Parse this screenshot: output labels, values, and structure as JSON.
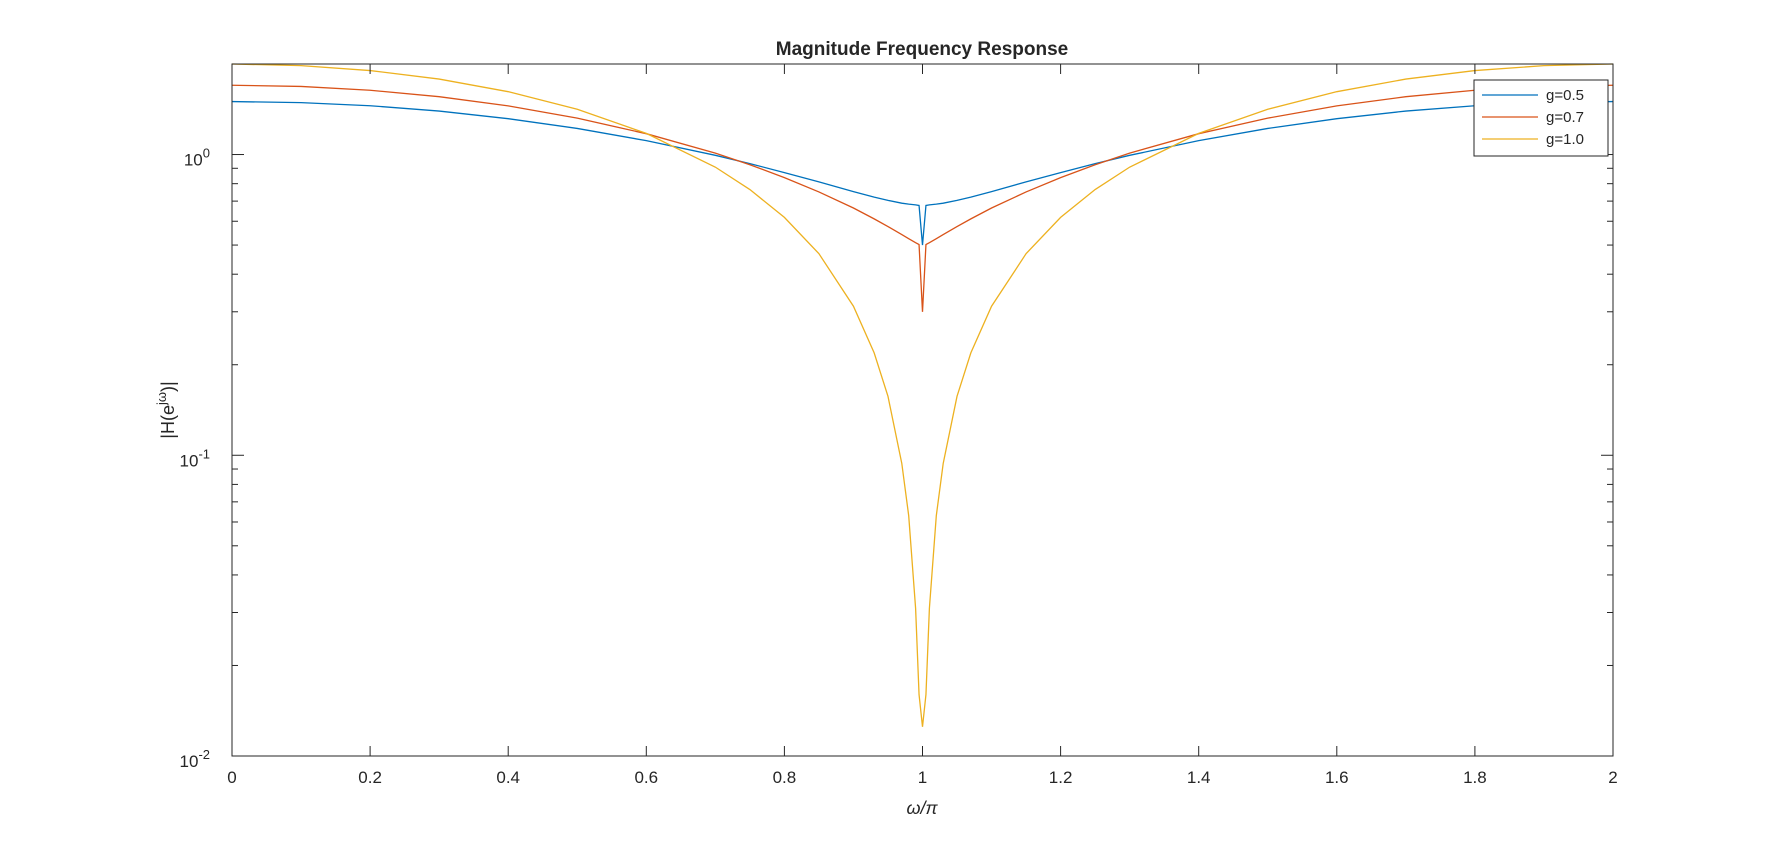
{
  "chart_data": {
    "type": "line",
    "title": "Magnitude Frequency Response",
    "xlabel": "ω/π",
    "ylabel_base": "|H(e",
    "ylabel_sup": "jω",
    "ylabel_tail": ")|",
    "xlim": [
      0,
      2
    ],
    "ylim": [
      0.01,
      2.0
    ],
    "yscale": "log",
    "grid": false,
    "legend_position": "top-right",
    "x_ticks": [
      {
        "value": 0,
        "label": "0"
      },
      {
        "value": 0.2,
        "label": "0.2"
      },
      {
        "value": 0.4,
        "label": "0.4"
      },
      {
        "value": 0.6,
        "label": "0.6"
      },
      {
        "value": 0.8,
        "label": "0.8"
      },
      {
        "value": 1,
        "label": "1"
      },
      {
        "value": 1.2,
        "label": "1.2"
      },
      {
        "value": 1.4,
        "label": "1.4"
      },
      {
        "value": 1.6,
        "label": "1.6"
      },
      {
        "value": 1.8,
        "label": "1.8"
      },
      {
        "value": 2,
        "label": "2"
      }
    ],
    "y_ticks": [
      {
        "value": 1,
        "base": "10",
        "exp": "0"
      },
      {
        "value": 0.1,
        "base": "10",
        "exp": "-1"
      },
      {
        "value": 0.01,
        "base": "10",
        "exp": "-2"
      }
    ],
    "x": [
      0,
      0.1,
      0.2,
      0.3,
      0.4,
      0.5,
      0.6,
      0.7,
      0.75,
      0.8,
      0.85,
      0.9,
      0.93,
      0.95,
      0.97,
      0.98,
      0.99,
      0.995,
      1,
      1.005,
      1.01,
      1.02,
      1.03,
      1.05,
      1.07,
      1.1,
      1.15,
      1.2,
      1.25,
      1.3,
      1.4,
      1.5,
      1.6,
      1.7,
      1.8,
      1.9,
      2
    ],
    "series": [
      {
        "name": "g=0.5",
        "color": "#0072BD",
        "values": [
          1.5,
          1.488,
          1.453,
          1.395,
          1.316,
          1.221,
          1.112,
          0.994,
          0.933,
          0.871,
          0.811,
          0.753,
          0.722,
          0.704,
          0.689,
          0.684,
          0.68,
          0.677,
          0.5,
          0.677,
          0.68,
          0.684,
          0.689,
          0.704,
          0.722,
          0.753,
          0.811,
          0.871,
          0.933,
          0.994,
          1.112,
          1.221,
          1.316,
          1.395,
          1.453,
          1.488,
          1.5
        ]
      },
      {
        "name": "g=0.7",
        "color": "#D95319",
        "values": [
          1.7,
          1.684,
          1.636,
          1.557,
          1.451,
          1.321,
          1.173,
          1.011,
          0.925,
          0.838,
          0.751,
          0.664,
          0.611,
          0.576,
          0.542,
          0.525,
          0.509,
          0.502,
          0.3,
          0.502,
          0.509,
          0.525,
          0.542,
          0.576,
          0.611,
          0.664,
          0.751,
          0.838,
          0.925,
          1.011,
          1.173,
          1.321,
          1.451,
          1.557,
          1.636,
          1.684,
          1.7
        ]
      },
      {
        "name": "g=1.0",
        "color": "#EDB120",
        "values": [
          2.0,
          1.975,
          1.902,
          1.782,
          1.618,
          1.414,
          1.176,
          0.908,
          0.765,
          0.618,
          0.468,
          0.313,
          0.219,
          0.157,
          0.094,
          0.063,
          0.031,
          0.016,
          0.0125,
          0.016,
          0.031,
          0.063,
          0.094,
          0.157,
          0.219,
          0.313,
          0.468,
          0.618,
          0.765,
          0.908,
          1.176,
          1.414,
          1.618,
          1.782,
          1.902,
          1.975,
          2.0
        ]
      }
    ]
  }
}
